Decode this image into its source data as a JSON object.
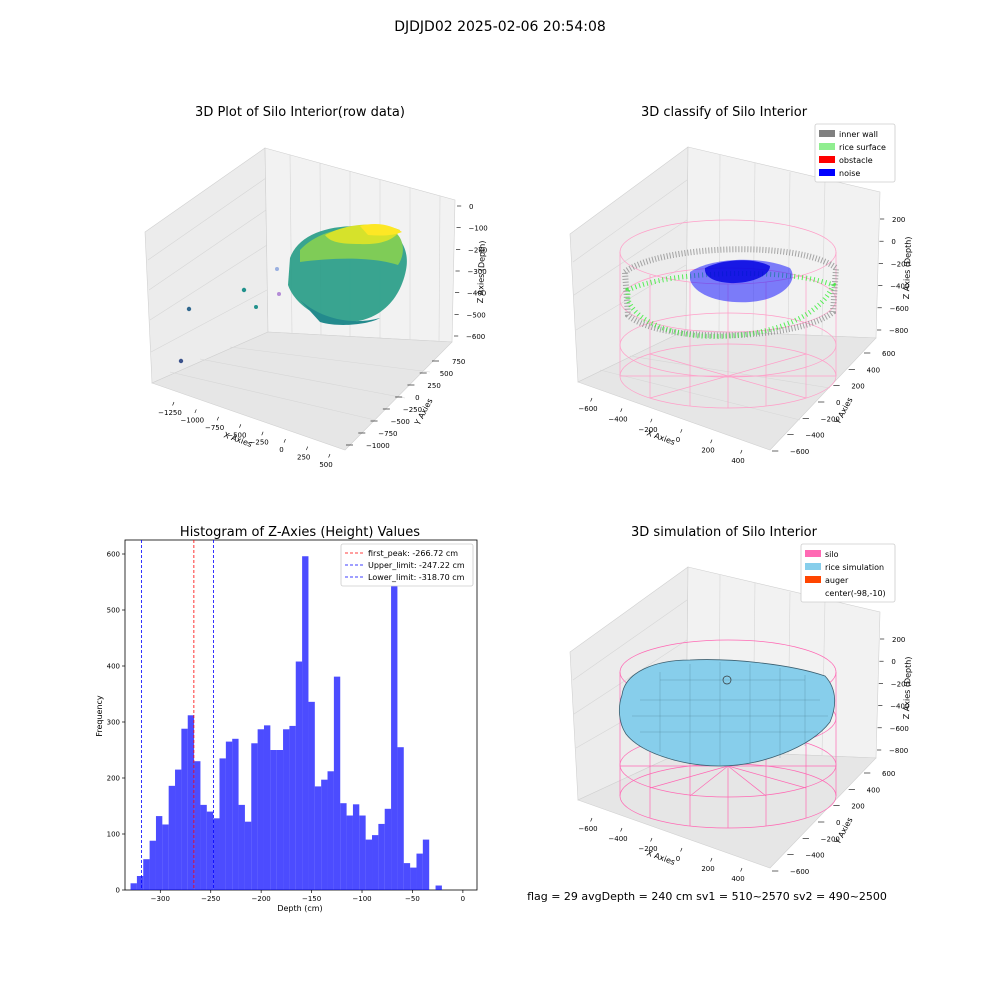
{
  "figure": {
    "suptitle": "DJDJD02 2025-02-06 20:54:08",
    "footer": "flag = 29  avgDepth = 240 cm  sv1 = 510~2570  sv2 = 490~2500"
  },
  "plot1": {
    "title": "3D Plot of Silo Interior(row data)",
    "xlabel": "X Axies",
    "ylabel": "Y Axies",
    "zlabel": "Z Axies (Depth)",
    "xticks": [
      "−1250",
      "−1000",
      "−750",
      "−500",
      "−250",
      "0",
      "250",
      "500"
    ],
    "yticks": [
      "−1000",
      "−750",
      "−500",
      "−250",
      "0",
      "250",
      "500",
      "750"
    ],
    "zticks": [
      "0",
      "−100",
      "−200",
      "−300",
      "−400",
      "−500",
      "−600"
    ]
  },
  "plot2": {
    "title": "3D classify of Silo Interior",
    "xlabel": "X Axies",
    "ylabel": "Y Axies",
    "zlabel": "Z Axies (Depth)",
    "xticks": [
      "−600",
      "−400",
      "−200",
      "0",
      "200",
      "400"
    ],
    "yticks": [
      "−600",
      "−400",
      "−200",
      "0",
      "200",
      "400",
      "600"
    ],
    "zticks": [
      "200",
      "0",
      "−200",
      "−400",
      "−600",
      "−800"
    ],
    "legend": [
      {
        "label": "inner wall",
        "color": "#808080"
      },
      {
        "label": "rice surface",
        "color": "#90ee90"
      },
      {
        "label": "obstacle",
        "color": "#ff0000"
      },
      {
        "label": "noise",
        "color": "#0000ff"
      }
    ]
  },
  "plot4": {
    "title": "3D simulation of Silo Interior",
    "xlabel": "X Axies",
    "ylabel": "Y Axies",
    "zlabel": "Z Axies (Depth)",
    "xticks": [
      "−600",
      "−400",
      "−200",
      "0",
      "200",
      "400"
    ],
    "yticks": [
      "−600",
      "−400",
      "−200",
      "0",
      "200",
      "400",
      "600"
    ],
    "zticks": [
      "200",
      "0",
      "−200",
      "−400",
      "−600",
      "−800"
    ],
    "legend": [
      {
        "label": "silo",
        "color": "#ff69b4"
      },
      {
        "label": "rice simulation",
        "color": "#87ceeb"
      },
      {
        "label": "auger",
        "color": "#ff4500"
      },
      {
        "label": "center(-98,-10)",
        "color": ""
      }
    ]
  },
  "chart_data": {
    "type": "bar",
    "title": "Histogram of Z-Axies (Height) Values",
    "xlabel": "Depth (cm)",
    "ylabel": "Frequency",
    "bar_color": "#0000ff",
    "xlim": [
      -335,
      14
    ],
    "ylim": [
      0,
      625
    ],
    "bin_start": -329.5,
    "bin_width": 6.3,
    "values": [
      12,
      25,
      55,
      88,
      132,
      117,
      186,
      215,
      288,
      312,
      230,
      152,
      140,
      128,
      235,
      265,
      270,
      152,
      122,
      262,
      287,
      294,
      250,
      250,
      287,
      293,
      408,
      596,
      336,
      185,
      197,
      212,
      381,
      155,
      133,
      153,
      133,
      90,
      98,
      118,
      145,
      550,
      255,
      48,
      40,
      65,
      90,
      0,
      8
    ],
    "xticks": [
      -300,
      -250,
      -200,
      -150,
      -100,
      -50,
      0
    ],
    "yticks": [
      0,
      100,
      200,
      300,
      400,
      500,
      600
    ],
    "xtick_labels": [
      "−300",
      "−250",
      "−200",
      "−150",
      "−100",
      "−50",
      "0"
    ],
    "ytick_labels": [
      "0",
      "100",
      "200",
      "300",
      "400",
      "500",
      "600"
    ],
    "vlines": [
      {
        "value": -266.72,
        "color": "#ff0000",
        "label": "first_peak: -266.72 cm"
      },
      {
        "value": -247.22,
        "color": "#0000ff",
        "label": "Upper_limit: -247.22 cm"
      },
      {
        "value": -318.7,
        "color": "#0000ff",
        "label": "Lower_limit: -318.70 cm"
      }
    ],
    "legend_position": "upper right"
  }
}
